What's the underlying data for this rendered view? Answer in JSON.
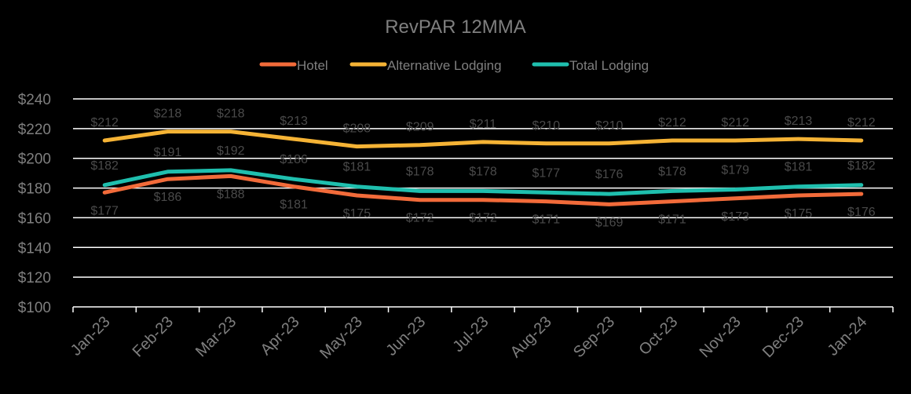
{
  "chart_data": {
    "type": "line",
    "title": "RevPAR 12MMA",
    "categories": [
      "Jan-23",
      "Feb-23",
      "Mar-23",
      "Apr-23",
      "May-23",
      "Jun-23",
      "Jul-23",
      "Aug-23",
      "Sep-23",
      "Oct-23",
      "Nov-23",
      "Dec-23",
      "Jan-24"
    ],
    "ylim": [
      100,
      240
    ],
    "yticks": [
      100,
      120,
      140,
      160,
      180,
      200,
      220,
      240
    ],
    "ytick_labels": [
      "$100",
      "$120",
      "$140",
      "$160",
      "$180",
      "$200",
      "$220",
      "$240"
    ],
    "grid": true,
    "legend_position": "top-center",
    "series": [
      {
        "name": "Hotel",
        "color": "#f26b3a",
        "values": [
          177,
          186,
          188,
          181,
          175,
          172,
          172,
          171,
          169,
          171,
          173,
          175,
          176
        ],
        "labels": [
          "$177",
          "$186",
          "$188",
          "$181",
          "$175",
          "$172",
          "$172",
          "$171",
          "$169",
          "$171",
          "$173",
          "$175",
          "$176"
        ]
      },
      {
        "name": "Alternative Lodging",
        "color": "#f5b335",
        "values": [
          212,
          218,
          218,
          213,
          208,
          209,
          211,
          210,
          210,
          212,
          212,
          213,
          212
        ],
        "labels": [
          "$212",
          "$218",
          "$218",
          "$213",
          "$208",
          "$209",
          "$211",
          "$210",
          "$210",
          "$212",
          "$212",
          "$213",
          "$212"
        ]
      },
      {
        "name": "Total Lodging",
        "color": "#1fbfae",
        "values": [
          182,
          191,
          192,
          186,
          181,
          178,
          178,
          177,
          176,
          178,
          179,
          181,
          182
        ],
        "labels": [
          "$182",
          "$191",
          "$192",
          "$186",
          "$181",
          "$178",
          "$178",
          "$177",
          "$176",
          "$178",
          "$179",
          "$181",
          "$182"
        ]
      }
    ]
  }
}
